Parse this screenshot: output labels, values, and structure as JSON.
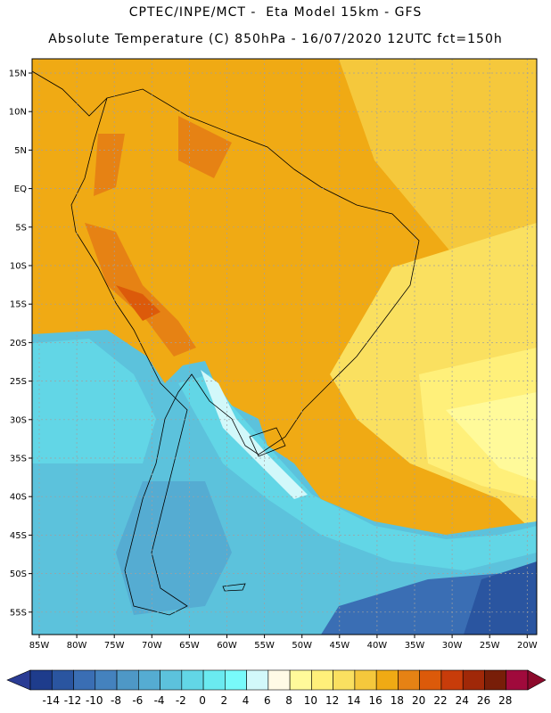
{
  "header": {
    "line1": "CPTEC/INPE/MCT -  Eta Model 15km - GFS",
    "line2": "Absolute Temperature (C) 850hPa - 16/07/2020 12UTC fct=150h"
  },
  "map": {
    "lat_labels": [
      "15N",
      "10N",
      "5N",
      "EQ",
      "5S",
      "10S",
      "15S",
      "20S",
      "25S",
      "30S",
      "35S",
      "40S",
      "45S",
      "50S",
      "55S"
    ],
    "lon_labels": [
      "85W",
      "80W",
      "75W",
      "70W",
      "65W",
      "60W",
      "55W",
      "50W",
      "45W",
      "40W",
      "35W",
      "30W",
      "25W",
      "20W"
    ],
    "lat_range": [
      -58,
      16
    ],
    "lon_range": [
      -86,
      -20
    ]
  },
  "colorbar": {
    "labels": [
      "-14",
      "-12",
      "-10",
      "-8",
      "-6",
      "-4",
      "-2",
      "0",
      "2",
      "4",
      "6",
      "8",
      "10",
      "12",
      "14",
      "16",
      "18",
      "20",
      "22",
      "24",
      "26",
      "28"
    ],
    "colors": [
      "#1e3c8c",
      "#2a55a0",
      "#3a6eb4",
      "#4482be",
      "#4e98c6",
      "#55acd2",
      "#5cc2dc",
      "#62d6e6",
      "#6aeaf0",
      "#78fafa",
      "#d2f8fa",
      "#fffae6",
      "#fffa9a",
      "#fff07a",
      "#fae060",
      "#f5c83c",
      "#f0aa14",
      "#e68214",
      "#dc5a0a",
      "#c83c0a",
      "#a02808",
      "#781e08",
      "#a00a3c"
    ],
    "under_color": "#2a3c94",
    "over_color": "#8c0a2c"
  }
}
